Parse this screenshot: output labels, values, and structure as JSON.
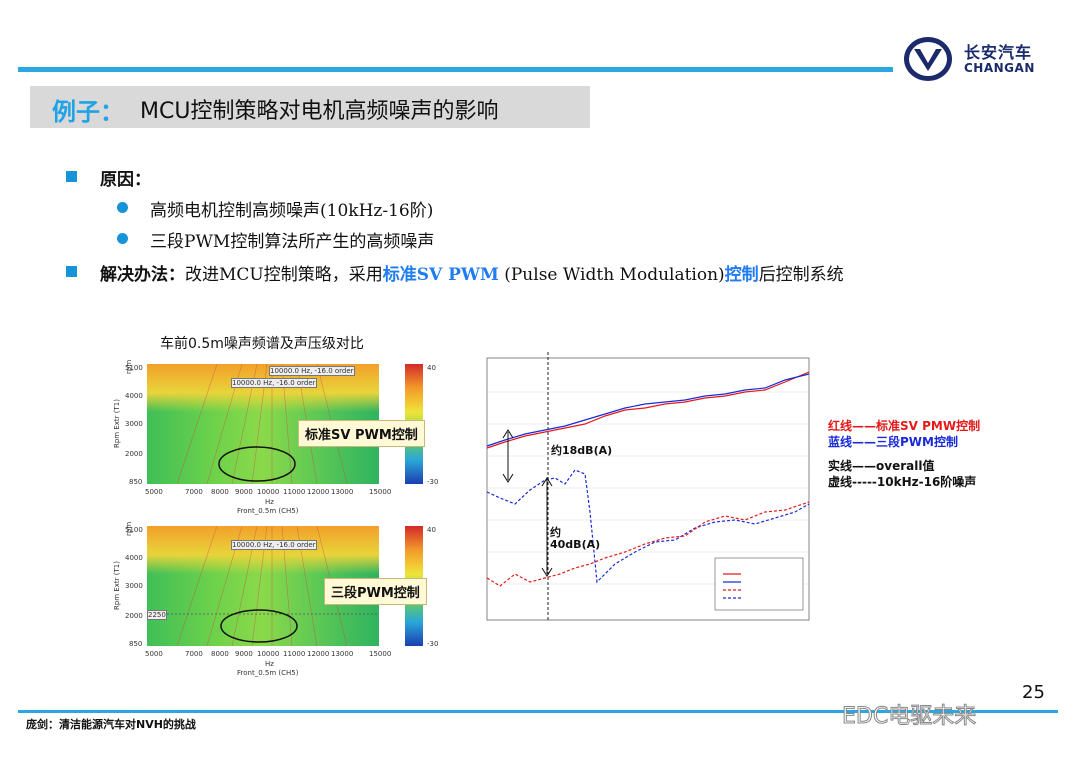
{
  "brand": {
    "name_cn": "长安汽车",
    "name_en": "CHANGAN"
  },
  "title": {
    "prefix": "例子：",
    "text": "MCU控制策略对电机高频噪声的影响"
  },
  "bullets": {
    "cause_label": "原因：",
    "cause_items": [
      "高频电机控制高频噪声(10kHz-16阶)",
      "三段PWM控制算法所产生的高频噪声"
    ],
    "solution_label": "解决办法：",
    "solution_text_1": "改进MCU控制策略，采用",
    "solution_highlight_1": "标准SV PWM",
    "solution_text_2": "(Pulse Width Modulation)",
    "solution_highlight_2": "控制",
    "solution_text_3": "后控制系统"
  },
  "figure": {
    "caption": "车前0.5m噪声频谱及声压级对比",
    "spectrograms": [
      {
        "tag": "标准SV PWM控制",
        "box_label": "10000.0 Hz, -16.0 order",
        "box_label2": "10000.0 Hz, -16.0 order",
        "yticks": [
          "5100",
          "4000",
          "3000",
          "2000",
          "850"
        ],
        "xticks": [
          "5000",
          "7000",
          "8000",
          "9000",
          "10000",
          "11000",
          "12000",
          "13000",
          "15000"
        ],
        "ylabel": "Rpm Extr (T1)",
        "yunit": "rpm",
        "xunit": "Hz",
        "xlabel": "Front_0.5m (CH5)",
        "cbar_top": "40",
        "cbar_bottom": "-30"
      },
      {
        "tag": "三段PWM控制",
        "box_label": "10000.0 Hz, -16.0 order",
        "box_label2": "2250",
        "yticks": [
          "5100",
          "4000",
          "3000",
          "2000",
          "850"
        ],
        "xticks": [
          "5000",
          "7000",
          "8000",
          "9000",
          "10000",
          "11000",
          "12000",
          "13000",
          "15000"
        ],
        "ylabel": "Rpm Extr (T1)",
        "yunit": "rpm",
        "xunit": "Hz",
        "xlabel": "Front_0.5m (CH5)",
        "cbar_top": "40",
        "cbar_bottom": "-30"
      }
    ],
    "line_plot": {
      "ann1": "约18dB(A)",
      "ann2a": "约",
      "ann2b": "40dB(A)"
    },
    "legend": {
      "red": "红线——标准SV PMW控制",
      "blue": "蓝线——三段PWM控制",
      "solid": "实线——overall值",
      "dashed": "虚线-----10kHz-16阶噪声"
    },
    "colors": {
      "red": "#e41a1a",
      "blue": "#1a2ad8"
    }
  },
  "page_number": "25",
  "footer": "庞剑：清洁能源汽车对NVH的挑战",
  "watermark": "EDC电驱未来"
}
